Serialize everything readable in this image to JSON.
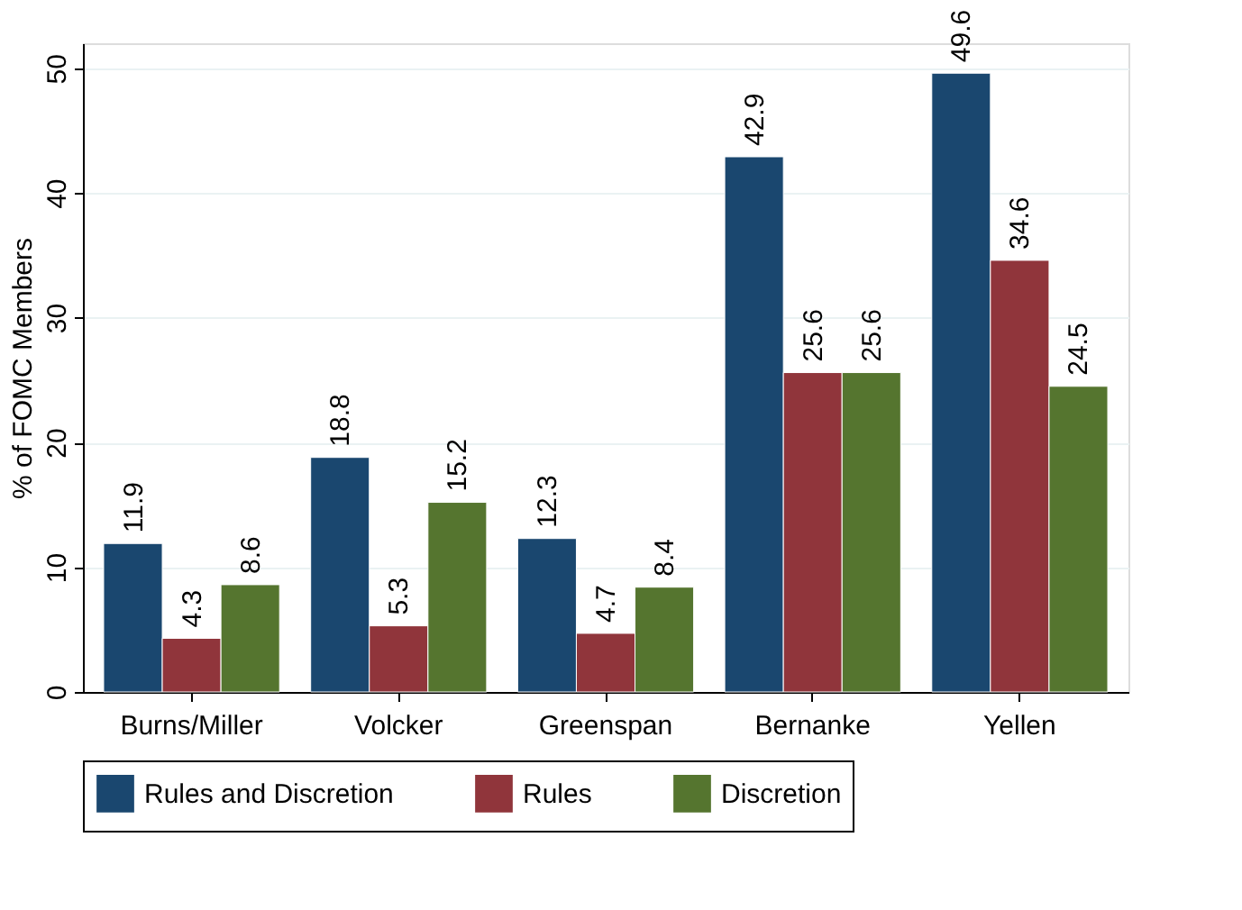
{
  "chart_data": {
    "type": "bar",
    "ylabel": "% of FOMC Members",
    "categories": [
      "Burns/Miller",
      "Volcker",
      "Greenspan",
      "Bernanke",
      "Yellen"
    ],
    "series": [
      {
        "name": "Rules and Discretion",
        "color": "#1a476f",
        "values": [
          11.9,
          18.8,
          12.3,
          42.9,
          49.6
        ]
      },
      {
        "name": "Rules",
        "color": "#90353b",
        "values": [
          4.3,
          5.3,
          4.7,
          25.6,
          34.6
        ]
      },
      {
        "name": "Discretion",
        "color": "#55752f",
        "values": [
          8.6,
          15.2,
          8.4,
          25.6,
          24.5
        ]
      }
    ],
    "ylim": [
      0,
      52
    ],
    "yticks": [
      0,
      10,
      20,
      30,
      40,
      50
    ],
    "grid": "y",
    "legend": "bottom",
    "data_labels": true
  }
}
